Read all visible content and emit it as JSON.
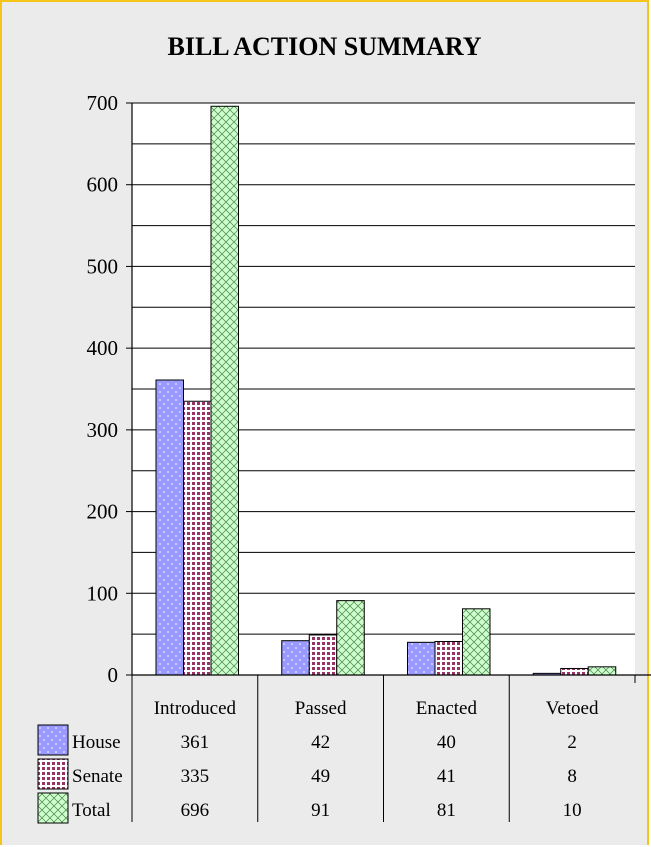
{
  "chart_data": {
    "type": "bar",
    "title": "BILL ACTION SUMMARY",
    "categories": [
      "Introduced",
      "Passed",
      "Enacted",
      "Vetoed"
    ],
    "series": [
      {
        "name": "House",
        "values": [
          361,
          42,
          40,
          2
        ],
        "color": "#9999ff",
        "pattern": "dots"
      },
      {
        "name": "Senate",
        "values": [
          335,
          49,
          41,
          8
        ],
        "color": "#993366",
        "pattern": "grid"
      },
      {
        "name": "Total",
        "values": [
          696,
          91,
          81,
          10
        ],
        "color": "#ccffcc",
        "pattern": "crosshatch"
      }
    ],
    "ylim": [
      0,
      700
    ],
    "yticks": [
      0,
      100,
      200,
      300,
      400,
      500,
      600,
      700
    ],
    "grid": true,
    "legend": "data-table"
  }
}
